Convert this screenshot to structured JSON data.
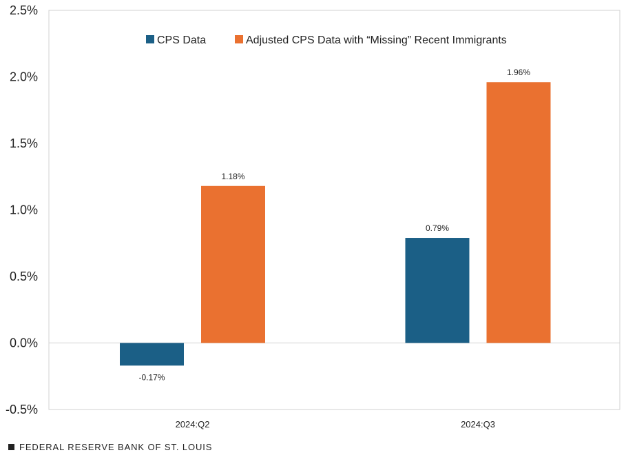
{
  "chart_data": {
    "type": "bar",
    "categories": [
      "2024:Q2",
      "2024:Q3"
    ],
    "series": [
      {
        "name": "CPS Data",
        "color": "#1b5f86",
        "values": [
          -0.17,
          0.79
        ],
        "labels": [
          "-0.17%",
          "0.79%"
        ]
      },
      {
        "name": "Adjusted CPS Data with “Missing” Recent Immigrants",
        "color": "#ea7130",
        "values": [
          1.18,
          1.96
        ],
        "labels": [
          "1.18%",
          "1.96%"
        ]
      }
    ],
    "y_ticks": [
      2.5,
      2.0,
      1.5,
      1.0,
      0.5,
      0.0,
      -0.5
    ],
    "y_tick_labels": [
      "2.5%",
      "2.0%",
      "1.5%",
      "1.0%",
      "0.5%",
      "0.0%",
      "-0.5%"
    ],
    "ylim": [
      -0.5,
      2.5
    ],
    "legend_position": "top",
    "grid": false
  },
  "source": "FEDERAL RESERVE BANK OF ST. LOUIS"
}
